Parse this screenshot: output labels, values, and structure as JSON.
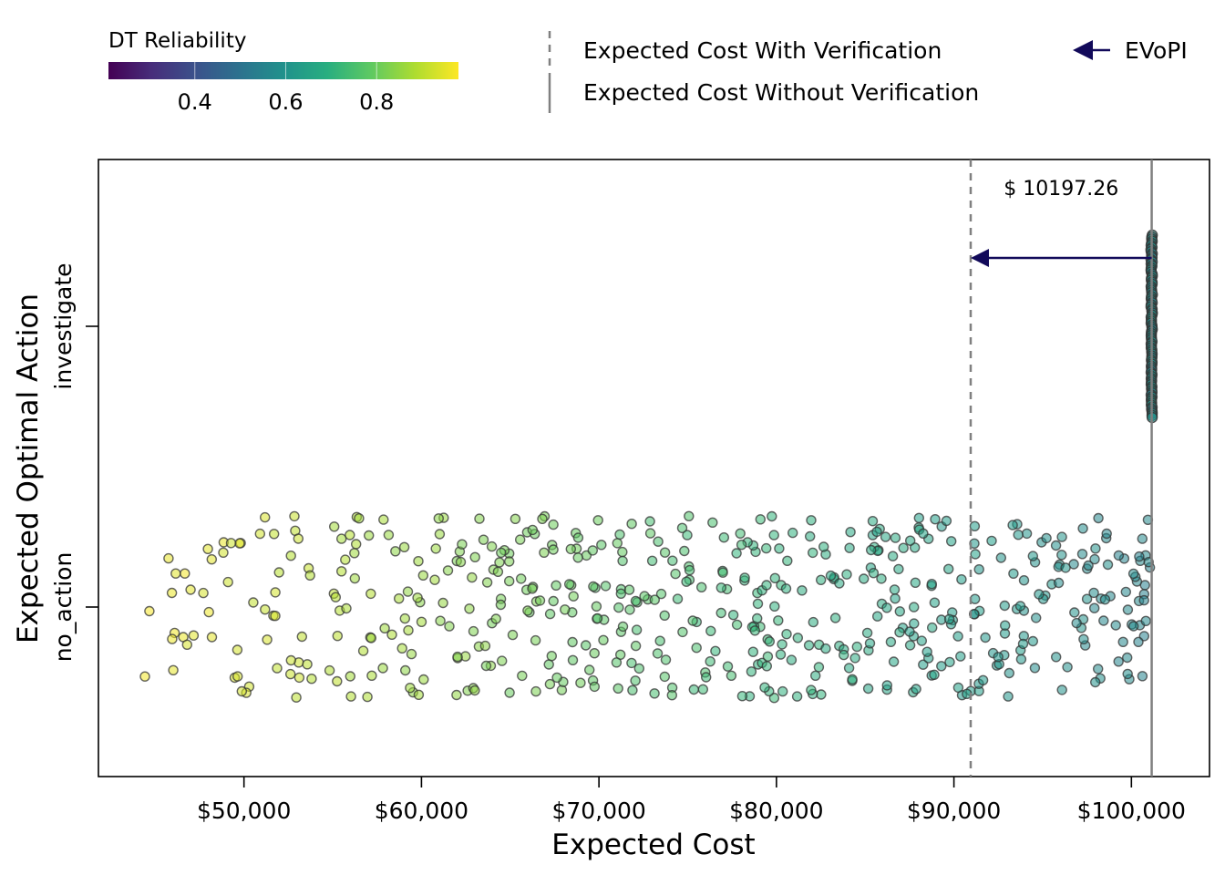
{
  "chart_data": {
    "type": "scatter",
    "xlabel": "Expected Cost",
    "ylabel": "Expected Optimal Action",
    "xlim": [
      41800,
      104400
    ],
    "x_ticks": [
      50000,
      60000,
      70000,
      80000,
      90000,
      100000
    ],
    "x_tick_labels": [
      "$50,000",
      "$60,000",
      "$70,000",
      "$80,000",
      "$90,000",
      "$100,000"
    ],
    "categories": [
      "no_action",
      "investigate"
    ],
    "colorbar": {
      "title": "DT Reliability",
      "range": [
        0.21,
        0.98
      ],
      "ticks": [
        0.4,
        0.6,
        0.8
      ],
      "tick_labels": [
        "0.4",
        "0.6",
        "0.8"
      ],
      "colormap": "viridis"
    },
    "expected_cost_with_verification": 90945,
    "expected_cost_without_verification": 101142,
    "evopi_value": 10197.26,
    "evopi_label": "$ 10197.26",
    "legend": {
      "with_verification": "Expected Cost With Verification",
      "without_verification": "Expected Cost Without Verification",
      "evopi": "EVoPI"
    },
    "series": [
      {
        "category": "investigate",
        "x_value": 101142,
        "n_points": 90,
        "reliability_range": [
          0.55,
          0.62
        ]
      },
      {
        "category": "no_action",
        "x_range": [
          44200,
          101100
        ],
        "n_points": 560,
        "reliability_at_x_min": 0.97,
        "reliability_at_x_max": 0.56
      }
    ],
    "grid": false,
    "legend_placement": "top"
  },
  "colors": {
    "evopi_arrow": "#120a5a",
    "with_verification_line": "#808080",
    "without_verification_line": "#808080",
    "point_edge": "#333333"
  }
}
